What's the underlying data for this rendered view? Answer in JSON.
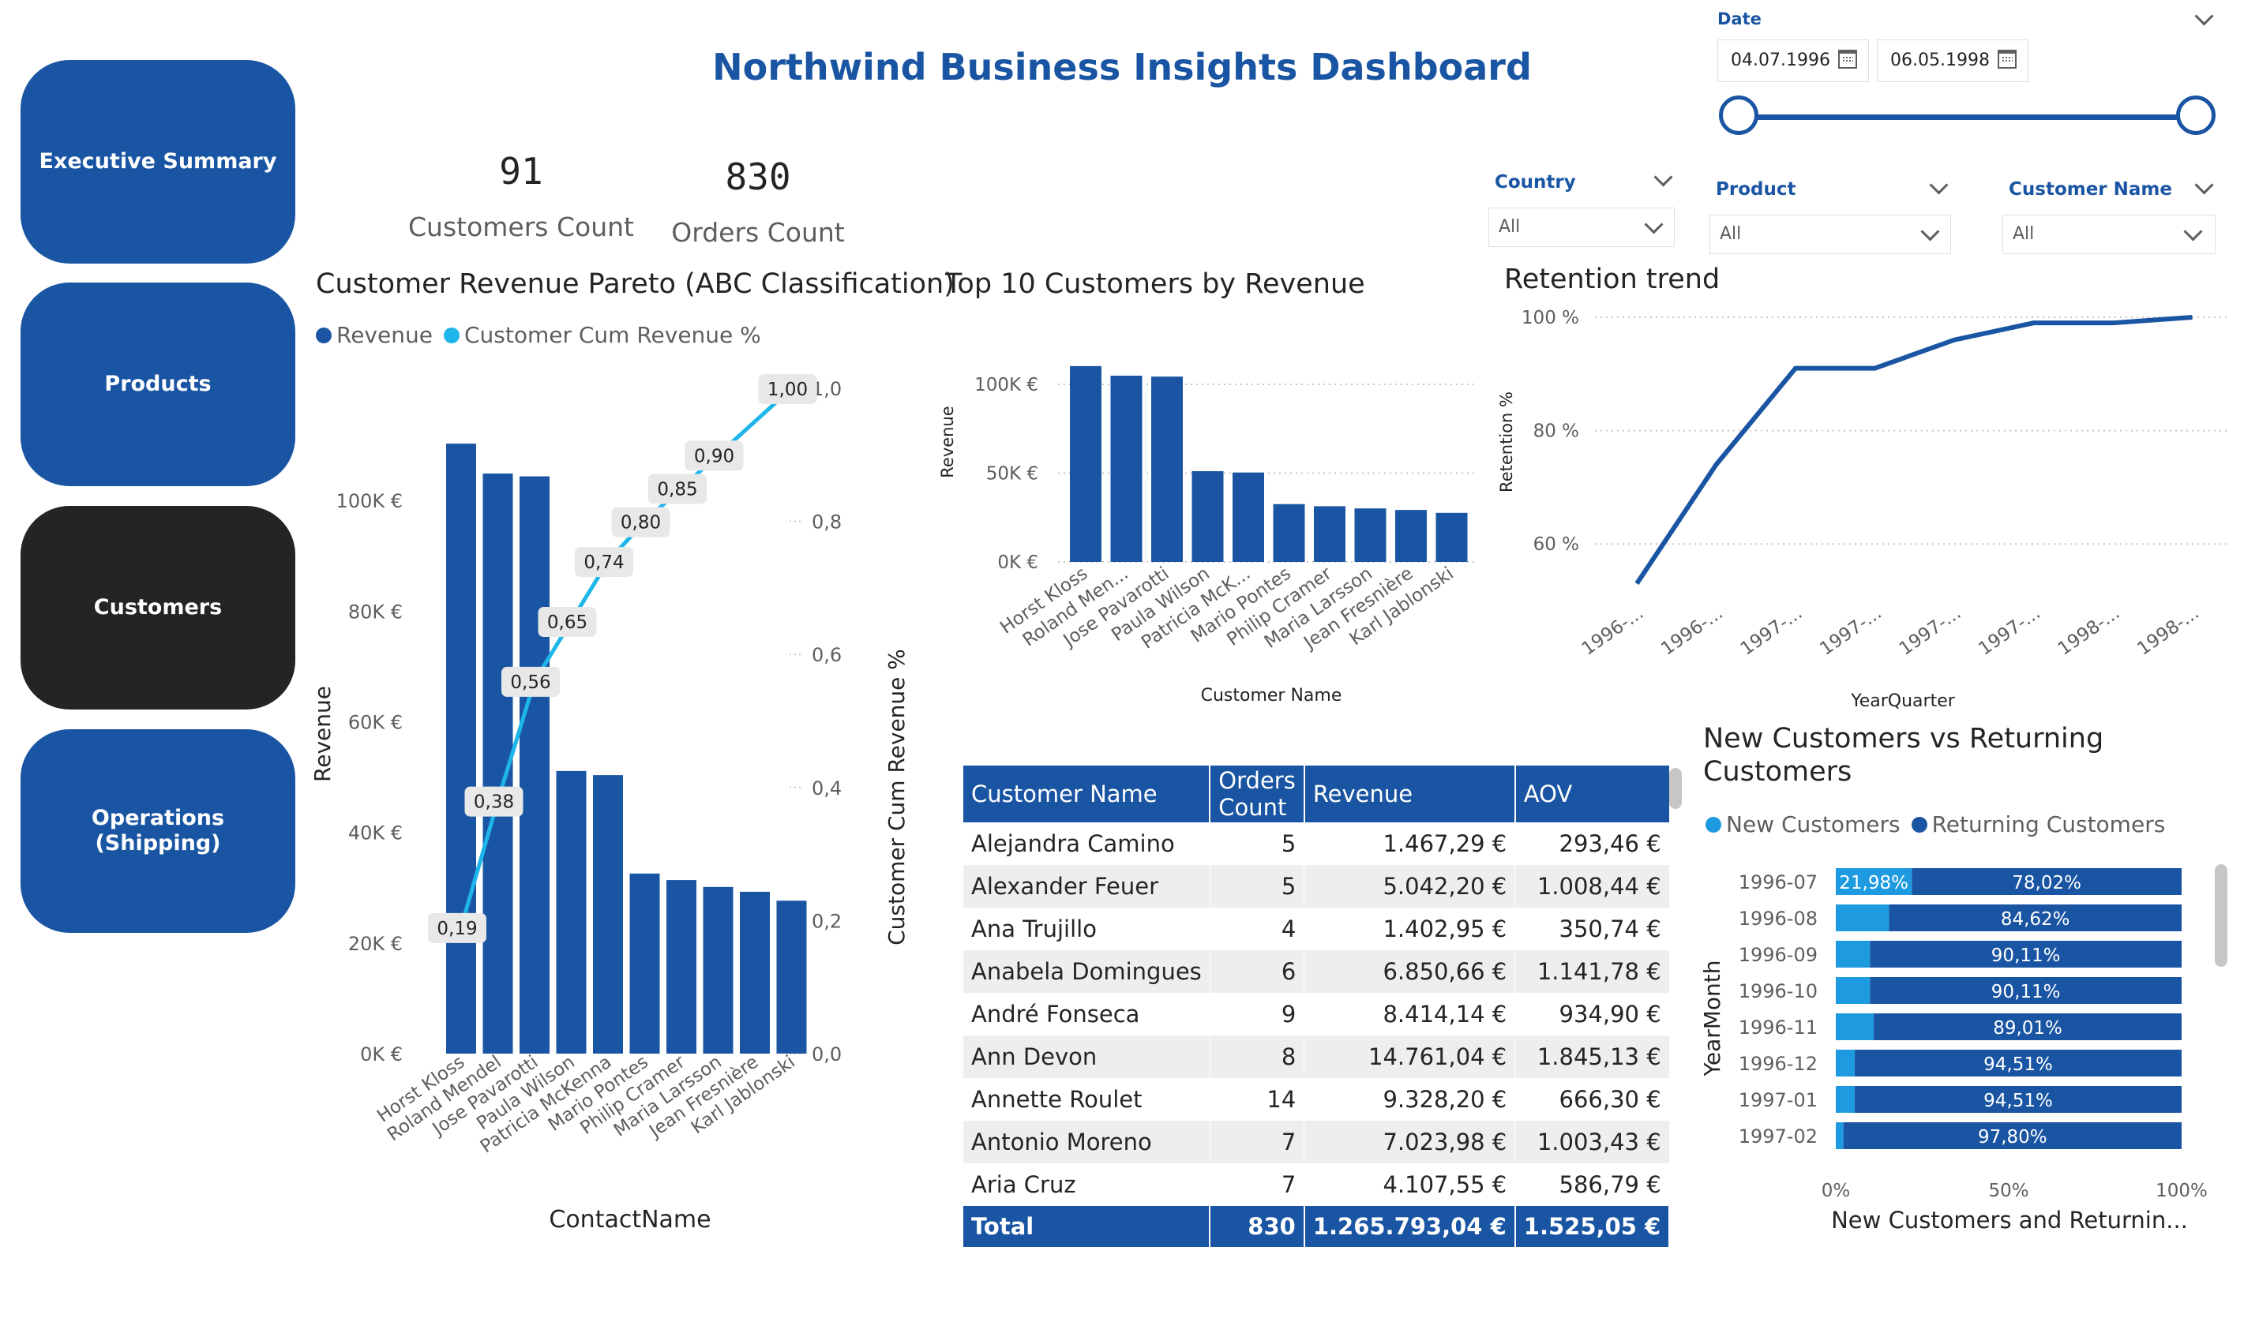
{
  "nav": [
    {
      "label": "Executive Summary",
      "active": false
    },
    {
      "label": "Products",
      "active": false
    },
    {
      "label": "Customers",
      "active": true
    },
    {
      "label": "Operations\n(Shipping)",
      "active": false
    }
  ],
  "header": {
    "title": "Northwind Business Insights Dashboard"
  },
  "kpis": {
    "customers": {
      "value": "91",
      "label": "Customers Count"
    },
    "orders": {
      "value": "830",
      "label": "Orders Count"
    }
  },
  "slicers": {
    "date": {
      "label": "Date",
      "start": "04.07.1996",
      "end": "06.05.1998",
      "range_fraction": [
        0,
        1
      ]
    },
    "country": {
      "label": "Country",
      "value": "All"
    },
    "product": {
      "label": "Product",
      "value": "All"
    },
    "customer_name": {
      "label": "Customer Name",
      "value": "All"
    }
  },
  "pareto": {
    "title": "Customer Revenue Pareto (ABC Classification)",
    "legend": [
      "Revenue",
      "Customer Cum Revenue %"
    ]
  },
  "top10": {
    "title": "Top 10 Customers by Revenue"
  },
  "retention": {
    "title": "Retention trend"
  },
  "newret": {
    "title": "New Customers vs Returning\nCustomers",
    "legend": [
      "New Customers",
      "Returning Customers"
    ]
  },
  "table": {
    "headers": [
      "Customer Name",
      "Orders Count",
      "Revenue",
      "AOV"
    ],
    "rows": [
      [
        "Alejandra Camino",
        "5",
        "1.467,29 €",
        "293,46 €"
      ],
      [
        "Alexander Feuer",
        "5",
        "5.042,20 €",
        "1.008,44 €"
      ],
      [
        "Ana Trujillo",
        "4",
        "1.402,95 €",
        "350,74 €"
      ],
      [
        "Anabela Domingues",
        "6",
        "6.850,66 €",
        "1.141,78 €"
      ],
      [
        "André Fonseca",
        "9",
        "8.414,14 €",
        "934,90 €"
      ],
      [
        "Ann Devon",
        "8",
        "14.761,04 €",
        "1.845,13 €"
      ],
      [
        "Annette Roulet",
        "14",
        "9.328,20 €",
        "666,30 €"
      ],
      [
        "Antonio Moreno",
        "7",
        "7.023,98 €",
        "1.003,43 €"
      ],
      [
        "Aria Cruz",
        "7",
        "4.107,55 €",
        "586,79 €"
      ]
    ],
    "total": [
      "Total",
      "830",
      "1.265.793,04 €",
      "1.525,05 €"
    ]
  },
  "colors": {
    "primary": "#1a55a3",
    "accent": "#1db5ea",
    "light": "#1e9be0",
    "dark": "#252423"
  },
  "chart_data": [
    {
      "id": "pareto",
      "type": "bar",
      "title": "Customer Revenue Pareto (ABC Classification)",
      "xlabel": "ContactName",
      "ylabel": "Revenue",
      "y2label": "Customer Cum Revenue %",
      "categories": [
        "Horst Kloss",
        "Roland Mendel",
        "Jose Pavarotti",
        "Paula Wilson",
        "Patricia McKenna",
        "Mario Pontes",
        "Philip Cramer",
        "Maria Larsson",
        "Jean Fresnière",
        "Karl Jablonski"
      ],
      "yticks": [
        "0K €",
        "20K €",
        "40K €",
        "60K €",
        "80K €",
        "100K €"
      ],
      "y2ticks": [
        "0,0",
        "0,2",
        "0,4",
        "0,6",
        "0,8",
        "1,0"
      ],
      "ylim": [
        0,
        117000
      ],
      "y2lim": [
        0,
        1
      ],
      "series": [
        {
          "name": "Revenue",
          "type": "bar",
          "values": [
            110277,
            104875,
            104362,
            51098,
            50350,
            32555,
            31380,
            30129,
            29260,
            27646
          ]
        },
        {
          "name": "Customer Cum Revenue %",
          "type": "line",
          "values": [
            0.19,
            0.38,
            0.56,
            0.65,
            0.74,
            0.8,
            0.85,
            0.9,
            0.95,
            1.0
          ],
          "labels": [
            "0,19",
            "0,38",
            "0,56",
            "0,65",
            "0,74",
            "0,80",
            "0,85",
            "0,90",
            null,
            "1,00"
          ]
        }
      ]
    },
    {
      "id": "top10",
      "type": "bar",
      "title": "Top 10 Customers by Revenue",
      "xlabel": "Customer Name",
      "ylabel": "Revenue",
      "categories": [
        "Horst Kloss",
        "Roland Men...",
        "Jose Pavarotti",
        "Paula Wilson",
        "Patricia McK...",
        "Mario Pontes",
        "Philip Cramer",
        "Maria Larsson",
        "Jean Fresnière",
        "Karl Jablonski"
      ],
      "yticks": [
        "0K €",
        "50K €",
        "100K €"
      ],
      "ylim": [
        0,
        120000
      ],
      "values": [
        110277,
        104875,
        104362,
        51098,
        50350,
        32555,
        31380,
        30129,
        29260,
        27646
      ]
    },
    {
      "id": "retention",
      "type": "line",
      "title": "Retention trend",
      "xlabel": "YearQuarter",
      "ylabel": "Retention %",
      "categories": [
        "1996-...",
        "1996-...",
        "1997-...",
        "1997-...",
        "1997-...",
        "1997-...",
        "1998-...",
        "1998-..."
      ],
      "yticks": [
        "60 %",
        "80 %",
        "100 %"
      ],
      "ylim": [
        50,
        100
      ],
      "values": [
        53,
        74,
        91,
        91,
        96,
        99,
        99,
        100
      ]
    },
    {
      "id": "newret",
      "type": "bar",
      "orientation": "horizontal",
      "stacked": "100%",
      "xlabel": "New Customers and Returnin...",
      "ylabel": "YearMonth",
      "categories": [
        "1996-07",
        "1996-08",
        "1996-09",
        "1996-10",
        "1996-11",
        "1996-12",
        "1997-01",
        "1997-02"
      ],
      "xticks": [
        "0%",
        "50%",
        "100%"
      ],
      "series": [
        {
          "name": "New Customers",
          "values": [
            21.98,
            15.38,
            9.89,
            9.89,
            10.99,
            5.49,
            5.49,
            2.2
          ],
          "labels": [
            "21,98%",
            null,
            null,
            null,
            null,
            null,
            null,
            null
          ]
        },
        {
          "name": "Returning Customers",
          "values": [
            78.02,
            84.62,
            90.11,
            90.11,
            89.01,
            94.51,
            94.51,
            97.8
          ],
          "labels": [
            "78,02%",
            "84,62%",
            "90,11%",
            "90,11%",
            "89,01%",
            "94,51%",
            "94,51%",
            "97,80%"
          ]
        }
      ]
    }
  ]
}
